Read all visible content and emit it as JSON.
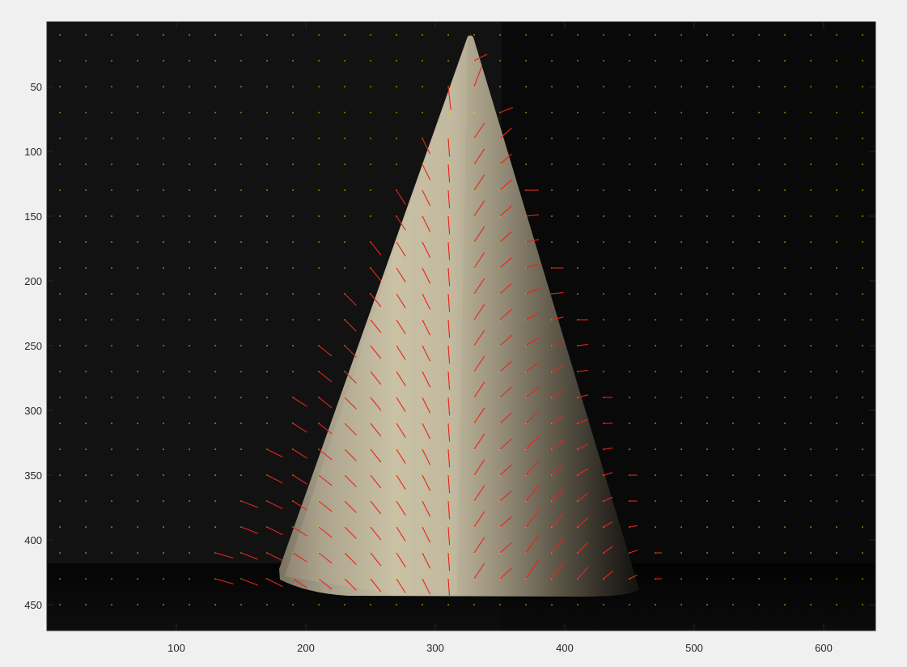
{
  "chart_data": {
    "type": "quiver",
    "title": "",
    "xlabel": "",
    "ylabel": "",
    "xlim": [
      0,
      640
    ],
    "ylim": [
      470,
      0
    ],
    "y_axis_reversed": true,
    "grid": false,
    "x_ticks": [
      "100",
      "200",
      "300",
      "400",
      "500",
      "600"
    ],
    "y_ticks": [
      "50",
      "100",
      "150",
      "200",
      "250",
      "300",
      "350",
      "400",
      "450"
    ],
    "background_image": "photograph of a white cone lit from the left on a black background",
    "grid_points": {
      "color": "#e6e600",
      "x_start": 10,
      "x_step": 20,
      "y_start": 10,
      "y_step": 20
    },
    "vector_color": "#e8231c",
    "vectors": [
      {
        "x": 330,
        "y": 30,
        "u": 10,
        "v": -5
      },
      {
        "x": 310,
        "y": 50,
        "u": 2,
        "v": 18
      },
      {
        "x": 330,
        "y": 50,
        "u": 6,
        "v": -16
      },
      {
        "x": 350,
        "y": 70,
        "u": 10,
        "v": -4
      },
      {
        "x": 290,
        "y": 90,
        "u": 6,
        "v": 12
      },
      {
        "x": 310,
        "y": 90,
        "u": 1,
        "v": 14
      },
      {
        "x": 330,
        "y": 90,
        "u": 8,
        "v": -12
      },
      {
        "x": 350,
        "y": 90,
        "u": 9,
        "v": -8
      },
      {
        "x": 290,
        "y": 110,
        "u": 6,
        "v": 12
      },
      {
        "x": 310,
        "y": 110,
        "u": 1,
        "v": 14
      },
      {
        "x": 330,
        "y": 110,
        "u": 8,
        "v": -12
      },
      {
        "x": 350,
        "y": 110,
        "u": 9,
        "v": -8
      },
      {
        "x": 270,
        "y": 130,
        "u": 7,
        "v": 11
      },
      {
        "x": 290,
        "y": 130,
        "u": 6,
        "v": 12
      },
      {
        "x": 310,
        "y": 130,
        "u": 1,
        "v": 14
      },
      {
        "x": 330,
        "y": 130,
        "u": 8,
        "v": -12
      },
      {
        "x": 350,
        "y": 130,
        "u": 9,
        "v": -8
      },
      {
        "x": 370,
        "y": 130,
        "u": 10,
        "v": 0
      },
      {
        "x": 270,
        "y": 150,
        "u": 7,
        "v": 11
      },
      {
        "x": 290,
        "y": 150,
        "u": 6,
        "v": 12
      },
      {
        "x": 310,
        "y": 150,
        "u": 1,
        "v": 14
      },
      {
        "x": 330,
        "y": 150,
        "u": 8,
        "v": -12
      },
      {
        "x": 350,
        "y": 150,
        "u": 9,
        "v": -8
      },
      {
        "x": 370,
        "y": 150,
        "u": 10,
        "v": -1
      },
      {
        "x": 250,
        "y": 170,
        "u": 8,
        "v": 10
      },
      {
        "x": 270,
        "y": 170,
        "u": 7,
        "v": 11
      },
      {
        "x": 290,
        "y": 170,
        "u": 6,
        "v": 12
      },
      {
        "x": 310,
        "y": 170,
        "u": 1,
        "v": 14
      },
      {
        "x": 330,
        "y": 170,
        "u": 8,
        "v": -12
      },
      {
        "x": 350,
        "y": 170,
        "u": 9,
        "v": -8
      },
      {
        "x": 370,
        "y": 170,
        "u": 10,
        "v": -2
      },
      {
        "x": 250,
        "y": 190,
        "u": 8,
        "v": 10
      },
      {
        "x": 270,
        "y": 190,
        "u": 7,
        "v": 11
      },
      {
        "x": 290,
        "y": 190,
        "u": 6,
        "v": 12
      },
      {
        "x": 310,
        "y": 190,
        "u": 1,
        "v": 14
      },
      {
        "x": 330,
        "y": 190,
        "u": 8,
        "v": -12
      },
      {
        "x": 350,
        "y": 190,
        "u": 9,
        "v": -8
      },
      {
        "x": 370,
        "y": 190,
        "u": 10,
        "v": -3
      },
      {
        "x": 390,
        "y": 190,
        "u": 9,
        "v": 0
      },
      {
        "x": 230,
        "y": 210,
        "u": 9,
        "v": 9
      },
      {
        "x": 250,
        "y": 210,
        "u": 8,
        "v": 10
      },
      {
        "x": 270,
        "y": 210,
        "u": 7,
        "v": 11
      },
      {
        "x": 290,
        "y": 210,
        "u": 6,
        "v": 12
      },
      {
        "x": 310,
        "y": 210,
        "u": 1,
        "v": 14
      },
      {
        "x": 330,
        "y": 210,
        "u": 8,
        "v": -12
      },
      {
        "x": 350,
        "y": 210,
        "u": 9,
        "v": -8
      },
      {
        "x": 370,
        "y": 210,
        "u": 10,
        "v": -4
      },
      {
        "x": 390,
        "y": 210,
        "u": 9,
        "v": -1
      },
      {
        "x": 230,
        "y": 230,
        "u": 9,
        "v": 9
      },
      {
        "x": 250,
        "y": 230,
        "u": 8,
        "v": 10
      },
      {
        "x": 270,
        "y": 230,
        "u": 7,
        "v": 11
      },
      {
        "x": 290,
        "y": 230,
        "u": 6,
        "v": 12
      },
      {
        "x": 310,
        "y": 230,
        "u": 1,
        "v": 14
      },
      {
        "x": 330,
        "y": 230,
        "u": 8,
        "v": -12
      },
      {
        "x": 350,
        "y": 230,
        "u": 9,
        "v": -8
      },
      {
        "x": 370,
        "y": 230,
        "u": 10,
        "v": -5
      },
      {
        "x": 390,
        "y": 230,
        "u": 9,
        "v": -2
      },
      {
        "x": 410,
        "y": 230,
        "u": 8,
        "v": 0
      },
      {
        "x": 210,
        "y": 250,
        "u": 10,
        "v": 8
      },
      {
        "x": 230,
        "y": 250,
        "u": 9,
        "v": 9
      },
      {
        "x": 250,
        "y": 250,
        "u": 8,
        "v": 10
      },
      {
        "x": 270,
        "y": 250,
        "u": 7,
        "v": 11
      },
      {
        "x": 290,
        "y": 250,
        "u": 6,
        "v": 12
      },
      {
        "x": 310,
        "y": 250,
        "u": 1,
        "v": 14
      },
      {
        "x": 330,
        "y": 250,
        "u": 8,
        "v": -12
      },
      {
        "x": 350,
        "y": 250,
        "u": 9,
        "v": -8
      },
      {
        "x": 370,
        "y": 250,
        "u": 10,
        "v": -6
      },
      {
        "x": 390,
        "y": 250,
        "u": 9,
        "v": -3
      },
      {
        "x": 410,
        "y": 250,
        "u": 8,
        "v": -1
      },
      {
        "x": 210,
        "y": 270,
        "u": 10,
        "v": 8
      },
      {
        "x": 230,
        "y": 270,
        "u": 9,
        "v": 9
      },
      {
        "x": 250,
        "y": 270,
        "u": 8,
        "v": 10
      },
      {
        "x": 270,
        "y": 270,
        "u": 7,
        "v": 11
      },
      {
        "x": 290,
        "y": 270,
        "u": 6,
        "v": 12
      },
      {
        "x": 310,
        "y": 270,
        "u": 1,
        "v": 14
      },
      {
        "x": 330,
        "y": 270,
        "u": 8,
        "v": -12
      },
      {
        "x": 350,
        "y": 270,
        "u": 9,
        "v": -8
      },
      {
        "x": 370,
        "y": 270,
        "u": 10,
        "v": -7
      },
      {
        "x": 390,
        "y": 270,
        "u": 9,
        "v": -4
      },
      {
        "x": 410,
        "y": 270,
        "u": 8,
        "v": -1
      },
      {
        "x": 190,
        "y": 290,
        "u": 11,
        "v": 7
      },
      {
        "x": 210,
        "y": 290,
        "u": 10,
        "v": 8
      },
      {
        "x": 230,
        "y": 290,
        "u": 9,
        "v": 9
      },
      {
        "x": 250,
        "y": 290,
        "u": 8,
        "v": 10
      },
      {
        "x": 270,
        "y": 290,
        "u": 7,
        "v": 11
      },
      {
        "x": 290,
        "y": 290,
        "u": 6,
        "v": 12
      },
      {
        "x": 310,
        "y": 290,
        "u": 1,
        "v": 14
      },
      {
        "x": 330,
        "y": 290,
        "u": 8,
        "v": -12
      },
      {
        "x": 350,
        "y": 290,
        "u": 9,
        "v": -8
      },
      {
        "x": 370,
        "y": 290,
        "u": 10,
        "v": -8
      },
      {
        "x": 390,
        "y": 290,
        "u": 9,
        "v": -5
      },
      {
        "x": 410,
        "y": 290,
        "u": 8,
        "v": -2
      },
      {
        "x": 430,
        "y": 290,
        "u": 7,
        "v": 0
      },
      {
        "x": 190,
        "y": 310,
        "u": 11,
        "v": 7
      },
      {
        "x": 210,
        "y": 310,
        "u": 10,
        "v": 8
      },
      {
        "x": 230,
        "y": 310,
        "u": 9,
        "v": 9
      },
      {
        "x": 250,
        "y": 310,
        "u": 8,
        "v": 10
      },
      {
        "x": 270,
        "y": 310,
        "u": 7,
        "v": 11
      },
      {
        "x": 290,
        "y": 310,
        "u": 6,
        "v": 12
      },
      {
        "x": 310,
        "y": 310,
        "u": 1,
        "v": 14
      },
      {
        "x": 330,
        "y": 310,
        "u": 8,
        "v": -12
      },
      {
        "x": 350,
        "y": 310,
        "u": 9,
        "v": -8
      },
      {
        "x": 370,
        "y": 310,
        "u": 10,
        "v": -9
      },
      {
        "x": 390,
        "y": 310,
        "u": 9,
        "v": -6
      },
      {
        "x": 410,
        "y": 310,
        "u": 8,
        "v": -3
      },
      {
        "x": 430,
        "y": 310,
        "u": 7,
        "v": 0
      },
      {
        "x": 170,
        "y": 330,
        "u": 12,
        "v": 6
      },
      {
        "x": 190,
        "y": 330,
        "u": 11,
        "v": 7
      },
      {
        "x": 210,
        "y": 330,
        "u": 10,
        "v": 8
      },
      {
        "x": 230,
        "y": 330,
        "u": 9,
        "v": 9
      },
      {
        "x": 250,
        "y": 330,
        "u": 8,
        "v": 10
      },
      {
        "x": 270,
        "y": 330,
        "u": 7,
        "v": 11
      },
      {
        "x": 290,
        "y": 330,
        "u": 6,
        "v": 12
      },
      {
        "x": 310,
        "y": 330,
        "u": 1,
        "v": 14
      },
      {
        "x": 330,
        "y": 330,
        "u": 8,
        "v": -12
      },
      {
        "x": 350,
        "y": 330,
        "u": 9,
        "v": -8
      },
      {
        "x": 370,
        "y": 330,
        "u": 10,
        "v": -10
      },
      {
        "x": 390,
        "y": 330,
        "u": 9,
        "v": -7
      },
      {
        "x": 410,
        "y": 330,
        "u": 8,
        "v": -4
      },
      {
        "x": 430,
        "y": 330,
        "u": 7,
        "v": -1
      },
      {
        "x": 170,
        "y": 350,
        "u": 12,
        "v": 6
      },
      {
        "x": 190,
        "y": 350,
        "u": 11,
        "v": 7
      },
      {
        "x": 210,
        "y": 350,
        "u": 10,
        "v": 8
      },
      {
        "x": 230,
        "y": 350,
        "u": 9,
        "v": 9
      },
      {
        "x": 250,
        "y": 350,
        "u": 8,
        "v": 10
      },
      {
        "x": 270,
        "y": 350,
        "u": 7,
        "v": 11
      },
      {
        "x": 290,
        "y": 350,
        "u": 6,
        "v": 12
      },
      {
        "x": 310,
        "y": 350,
        "u": 1,
        "v": 14
      },
      {
        "x": 330,
        "y": 350,
        "u": 8,
        "v": -12
      },
      {
        "x": 350,
        "y": 350,
        "u": 9,
        "v": -8
      },
      {
        "x": 370,
        "y": 350,
        "u": 10,
        "v": -11
      },
      {
        "x": 390,
        "y": 350,
        "u": 9,
        "v": -8
      },
      {
        "x": 410,
        "y": 350,
        "u": 8,
        "v": -5
      },
      {
        "x": 430,
        "y": 350,
        "u": 7,
        "v": -2
      },
      {
        "x": 450,
        "y": 350,
        "u": 6,
        "v": 0
      },
      {
        "x": 150,
        "y": 370,
        "u": 13,
        "v": 5
      },
      {
        "x": 170,
        "y": 370,
        "u": 12,
        "v": 6
      },
      {
        "x": 190,
        "y": 370,
        "u": 11,
        "v": 7
      },
      {
        "x": 210,
        "y": 370,
        "u": 10,
        "v": 8
      },
      {
        "x": 230,
        "y": 370,
        "u": 9,
        "v": 9
      },
      {
        "x": 250,
        "y": 370,
        "u": 8,
        "v": 10
      },
      {
        "x": 270,
        "y": 370,
        "u": 7,
        "v": 11
      },
      {
        "x": 290,
        "y": 370,
        "u": 6,
        "v": 12
      },
      {
        "x": 310,
        "y": 370,
        "u": 1,
        "v": 14
      },
      {
        "x": 330,
        "y": 370,
        "u": 8,
        "v": -12
      },
      {
        "x": 350,
        "y": 370,
        "u": 9,
        "v": -8
      },
      {
        "x": 370,
        "y": 370,
        "u": 10,
        "v": -12
      },
      {
        "x": 390,
        "y": 370,
        "u": 9,
        "v": -9
      },
      {
        "x": 410,
        "y": 370,
        "u": 8,
        "v": -6
      },
      {
        "x": 430,
        "y": 370,
        "u": 7,
        "v": -3
      },
      {
        "x": 450,
        "y": 370,
        "u": 6,
        "v": 0
      },
      {
        "x": 150,
        "y": 390,
        "u": 13,
        "v": 5
      },
      {
        "x": 170,
        "y": 390,
        "u": 12,
        "v": 6
      },
      {
        "x": 190,
        "y": 390,
        "u": 11,
        "v": 7
      },
      {
        "x": 210,
        "y": 390,
        "u": 10,
        "v": 8
      },
      {
        "x": 230,
        "y": 390,
        "u": 9,
        "v": 9
      },
      {
        "x": 250,
        "y": 390,
        "u": 8,
        "v": 10
      },
      {
        "x": 270,
        "y": 390,
        "u": 7,
        "v": 11
      },
      {
        "x": 290,
        "y": 390,
        "u": 6,
        "v": 12
      },
      {
        "x": 310,
        "y": 390,
        "u": 1,
        "v": 14
      },
      {
        "x": 330,
        "y": 390,
        "u": 8,
        "v": -12
      },
      {
        "x": 350,
        "y": 390,
        "u": 9,
        "v": -8
      },
      {
        "x": 370,
        "y": 390,
        "u": 10,
        "v": -13
      },
      {
        "x": 390,
        "y": 390,
        "u": 9,
        "v": -10
      },
      {
        "x": 410,
        "y": 390,
        "u": 8,
        "v": -7
      },
      {
        "x": 430,
        "y": 390,
        "u": 7,
        "v": -4
      },
      {
        "x": 450,
        "y": 390,
        "u": 6,
        "v": -1
      },
      {
        "x": 130,
        "y": 410,
        "u": 14,
        "v": 4
      },
      {
        "x": 150,
        "y": 410,
        "u": 13,
        "v": 5
      },
      {
        "x": 170,
        "y": 410,
        "u": 12,
        "v": 6
      },
      {
        "x": 190,
        "y": 410,
        "u": 11,
        "v": 7
      },
      {
        "x": 210,
        "y": 410,
        "u": 10,
        "v": 8
      },
      {
        "x": 230,
        "y": 410,
        "u": 9,
        "v": 9
      },
      {
        "x": 250,
        "y": 410,
        "u": 8,
        "v": 10
      },
      {
        "x": 270,
        "y": 410,
        "u": 7,
        "v": 11
      },
      {
        "x": 290,
        "y": 410,
        "u": 6,
        "v": 12
      },
      {
        "x": 310,
        "y": 410,
        "u": 1,
        "v": 14
      },
      {
        "x": 330,
        "y": 410,
        "u": 8,
        "v": -12
      },
      {
        "x": 350,
        "y": 410,
        "u": 9,
        "v": -8
      },
      {
        "x": 370,
        "y": 410,
        "u": 10,
        "v": -14
      },
      {
        "x": 390,
        "y": 410,
        "u": 9,
        "v": -11
      },
      {
        "x": 410,
        "y": 410,
        "u": 8,
        "v": -8
      },
      {
        "x": 430,
        "y": 410,
        "u": 7,
        "v": -5
      },
      {
        "x": 450,
        "y": 410,
        "u": 6,
        "v": -2
      },
      {
        "x": 470,
        "y": 410,
        "u": 5,
        "v": 0
      },
      {
        "x": 130,
        "y": 430,
        "u": 14,
        "v": 4
      },
      {
        "x": 150,
        "y": 430,
        "u": 13,
        "v": 5
      },
      {
        "x": 170,
        "y": 430,
        "u": 12,
        "v": 6
      },
      {
        "x": 190,
        "y": 430,
        "u": 11,
        "v": 7
      },
      {
        "x": 210,
        "y": 430,
        "u": 10,
        "v": 8
      },
      {
        "x": 230,
        "y": 430,
        "u": 9,
        "v": 9
      },
      {
        "x": 250,
        "y": 430,
        "u": 8,
        "v": 10
      },
      {
        "x": 270,
        "y": 430,
        "u": 7,
        "v": 11
      },
      {
        "x": 290,
        "y": 430,
        "u": 6,
        "v": 12
      },
      {
        "x": 310,
        "y": 430,
        "u": 1,
        "v": 14
      },
      {
        "x": 330,
        "y": 430,
        "u": 8,
        "v": -12
      },
      {
        "x": 350,
        "y": 430,
        "u": 9,
        "v": -8
      },
      {
        "x": 370,
        "y": 430,
        "u": 10,
        "v": -15
      },
      {
        "x": 390,
        "y": 430,
        "u": 9,
        "v": -12
      },
      {
        "x": 410,
        "y": 430,
        "u": 8,
        "v": -9
      },
      {
        "x": 430,
        "y": 430,
        "u": 7,
        "v": -6
      },
      {
        "x": 450,
        "y": 430,
        "u": 6,
        "v": -3
      },
      {
        "x": 470,
        "y": 430,
        "u": 5,
        "v": 0
      }
    ]
  }
}
